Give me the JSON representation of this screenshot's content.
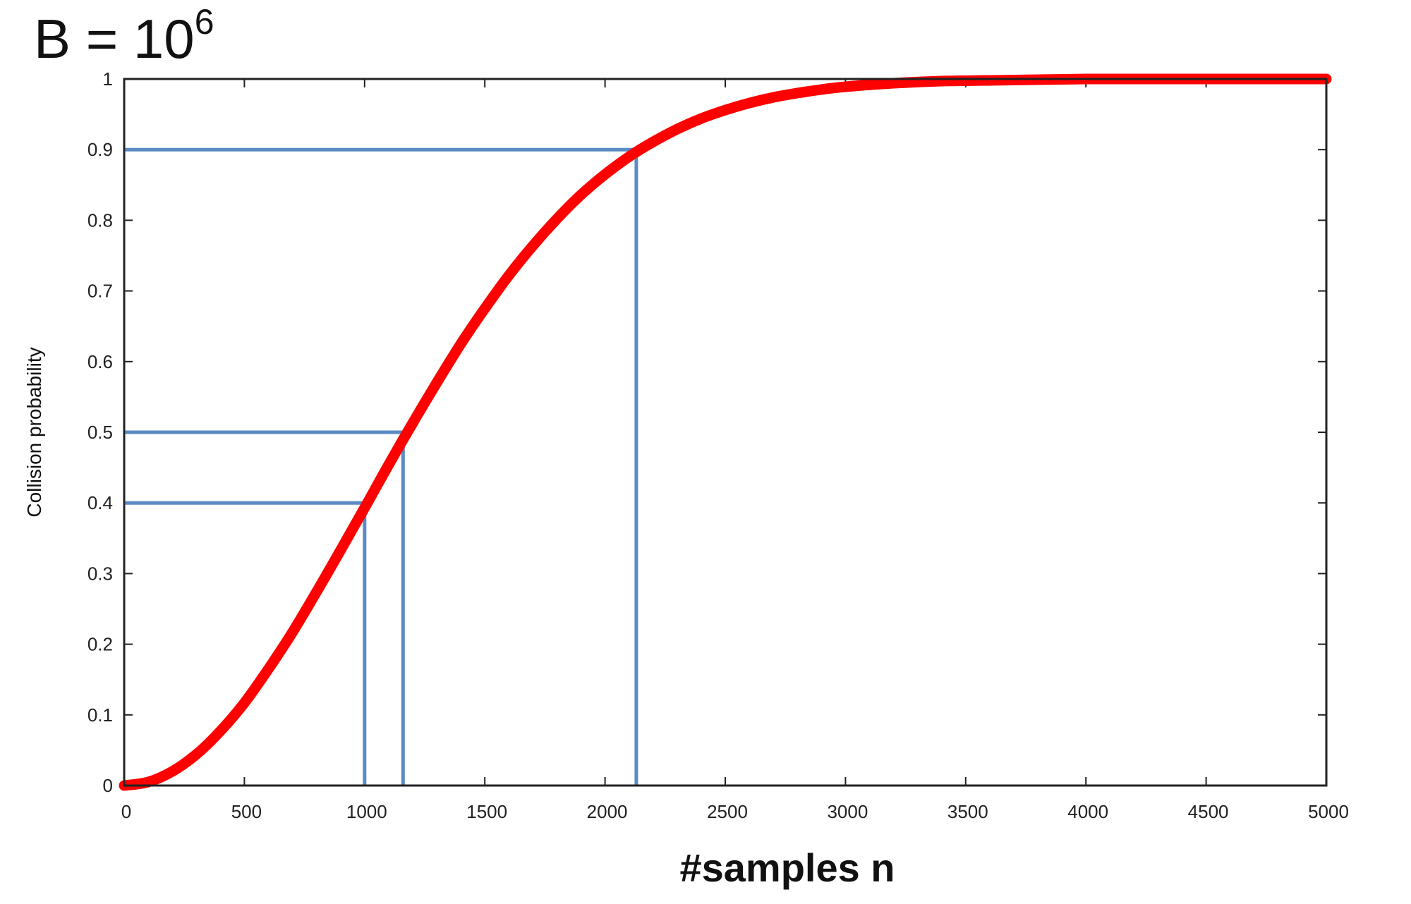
{
  "chart_data": {
    "type": "line",
    "title": {
      "base": "B = 10",
      "superscript": "6"
    },
    "xlabel": "#samples n",
    "ylabel": "Collision probability",
    "xlim": [
      0,
      5000
    ],
    "ylim": [
      0,
      1
    ],
    "x_ticks": [
      0,
      500,
      1000,
      1500,
      2000,
      2500,
      3000,
      3500,
      4000,
      4500,
      5000
    ],
    "y_ticks": [
      0,
      0.1,
      0.2,
      0.3,
      0.4,
      0.5,
      0.6,
      0.7,
      0.8,
      0.9,
      1
    ],
    "x_tick_labels": [
      "0",
      "500",
      "1000",
      "1500",
      "2000",
      "2500",
      "3000",
      "3500",
      "4000",
      "4500",
      "5000"
    ],
    "y_tick_labels": [
      "0",
      "0.1",
      "0.2",
      "0.3",
      "0.4",
      "0.5",
      "0.6",
      "0.7",
      "0.8",
      "0.9",
      "1"
    ],
    "grid": false,
    "series": [
      {
        "color": "#ff0000",
        "x": [
          0,
          100,
          200,
          300,
          400,
          500,
          600,
          700,
          800,
          900,
          1000,
          1100,
          1200,
          1300,
          1400,
          1500,
          1600,
          1700,
          1800,
          1900,
          2000,
          2100,
          2200,
          2300,
          2400,
          2500,
          2600,
          2700,
          2800,
          2900,
          3000,
          3200,
          3400,
          3600,
          3800,
          4000,
          4200,
          4400,
          4600,
          4800,
          5000
        ],
        "y": [
          0,
          0.005,
          0.02,
          0.044,
          0.077,
          0.117,
          0.165,
          0.217,
          0.274,
          0.333,
          0.393,
          0.454,
          0.513,
          0.57,
          0.625,
          0.675,
          0.722,
          0.764,
          0.802,
          0.836,
          0.865,
          0.89,
          0.911,
          0.929,
          0.944,
          0.956,
          0.966,
          0.974,
          0.98,
          0.985,
          0.989,
          0.994,
          0.997,
          0.998,
          0.999,
          1.0,
          1.0,
          1.0,
          1.0,
          1.0,
          1.0
        ]
      }
    ],
    "reference_lines": [
      {
        "x": 1000,
        "y": 0.4
      },
      {
        "x": 1160,
        "y": 0.5
      },
      {
        "x": 2130,
        "y": 0.9
      }
    ],
    "colors": {
      "curve": "#ff0000",
      "reference": "#5b8bc4",
      "frame": "#222222"
    }
  }
}
